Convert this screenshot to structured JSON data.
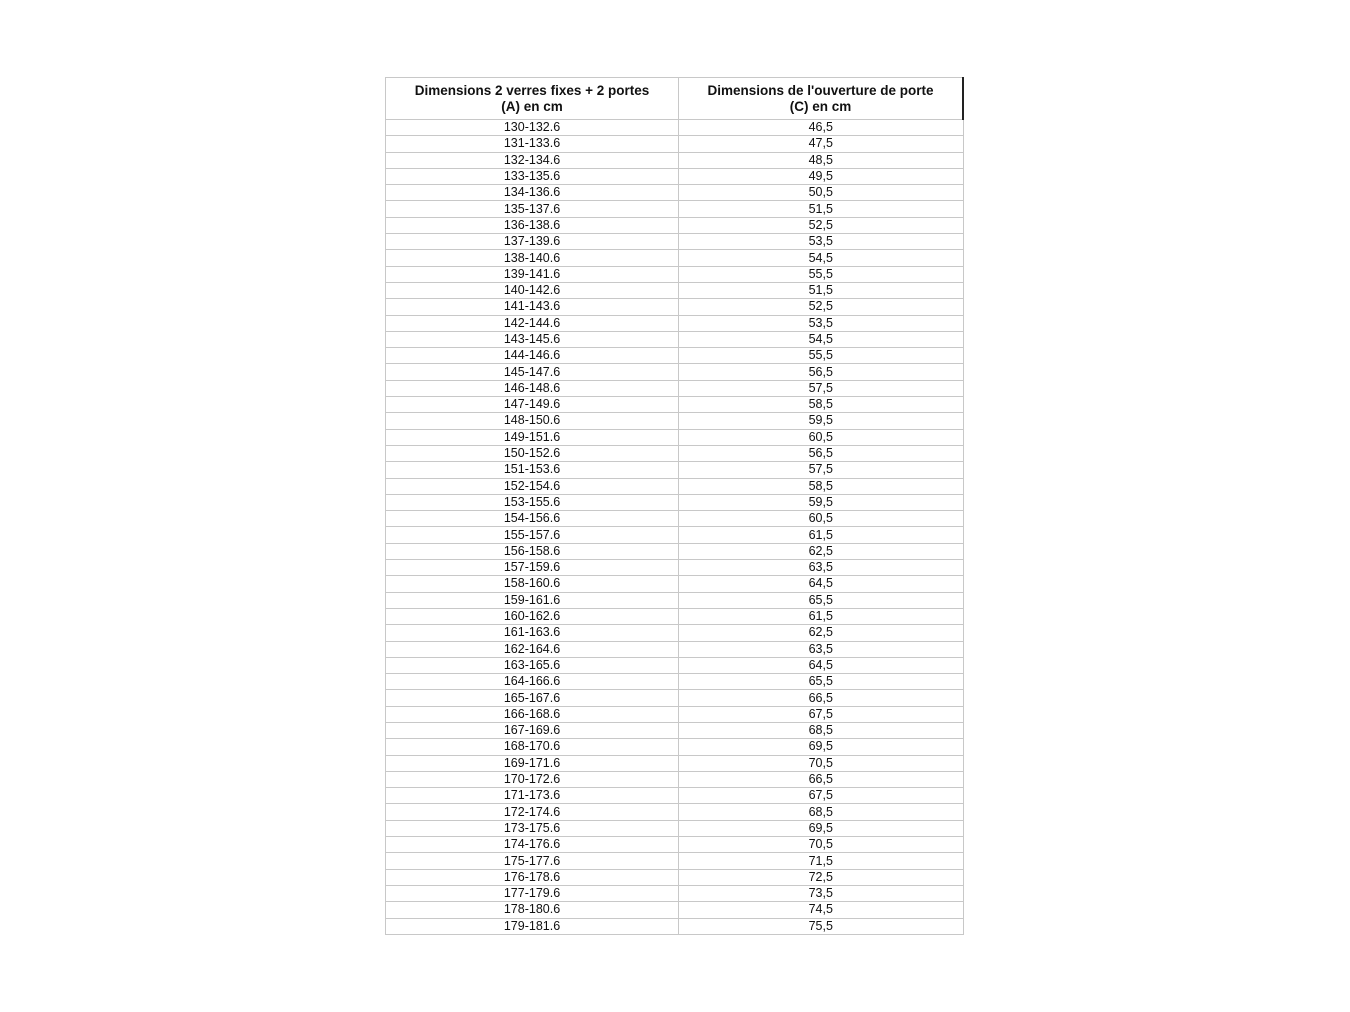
{
  "table": {
    "headers": [
      "Dimensions 2 verres fixes + 2 portes\n(A) en cm",
      "Dimensions de l'ouverture de porte\n(C) en cm"
    ],
    "header_lines": [
      [
        "Dimensions 2 verres fixes + 2 portes",
        "(A) en cm"
      ],
      [
        "Dimensions de l'ouverture de porte",
        "(C) en cm"
      ]
    ],
    "rows": [
      [
        "130-132.6",
        "46,5"
      ],
      [
        "131-133.6",
        "47,5"
      ],
      [
        "132-134.6",
        "48,5"
      ],
      [
        "133-135.6",
        "49,5"
      ],
      [
        "134-136.6",
        "50,5"
      ],
      [
        "135-137.6",
        "51,5"
      ],
      [
        "136-138.6",
        "52,5"
      ],
      [
        "137-139.6",
        "53,5"
      ],
      [
        "138-140.6",
        "54,5"
      ],
      [
        "139-141.6",
        "55,5"
      ],
      [
        "140-142.6",
        "51,5"
      ],
      [
        "141-143.6",
        "52,5"
      ],
      [
        "142-144.6",
        "53,5"
      ],
      [
        "143-145.6",
        "54,5"
      ],
      [
        "144-146.6",
        "55,5"
      ],
      [
        "145-147.6",
        "56,5"
      ],
      [
        "146-148.6",
        "57,5"
      ],
      [
        "147-149.6",
        "58,5"
      ],
      [
        "148-150.6",
        "59,5"
      ],
      [
        "149-151.6",
        "60,5"
      ],
      [
        "150-152.6",
        "56,5"
      ],
      [
        "151-153.6",
        "57,5"
      ],
      [
        "152-154.6",
        "58,5"
      ],
      [
        "153-155.6",
        "59,5"
      ],
      [
        "154-156.6",
        "60,5"
      ],
      [
        "155-157.6",
        "61,5"
      ],
      [
        "156-158.6",
        "62,5"
      ],
      [
        "157-159.6",
        "63,5"
      ],
      [
        "158-160.6",
        "64,5"
      ],
      [
        "159-161.6",
        "65,5"
      ],
      [
        "160-162.6",
        "61,5"
      ],
      [
        "161-163.6",
        "62,5"
      ],
      [
        "162-164.6",
        "63,5"
      ],
      [
        "163-165.6",
        "64,5"
      ],
      [
        "164-166.6",
        "65,5"
      ],
      [
        "165-167.6",
        "66,5"
      ],
      [
        "166-168.6",
        "67,5"
      ],
      [
        "167-169.6",
        "68,5"
      ],
      [
        "168-170.6",
        "69,5"
      ],
      [
        "169-171.6",
        "70,5"
      ],
      [
        "170-172.6",
        "66,5"
      ],
      [
        "171-173.6",
        "67,5"
      ],
      [
        "172-174.6",
        "68,5"
      ],
      [
        "173-175.6",
        "69,5"
      ],
      [
        "174-176.6",
        "70,5"
      ],
      [
        "175-177.6",
        "71,5"
      ],
      [
        "176-178.6",
        "72,5"
      ],
      [
        "177-179.6",
        "73,5"
      ],
      [
        "178-180.6",
        "74,5"
      ],
      [
        "179-181.6",
        "75,5"
      ]
    ]
  }
}
